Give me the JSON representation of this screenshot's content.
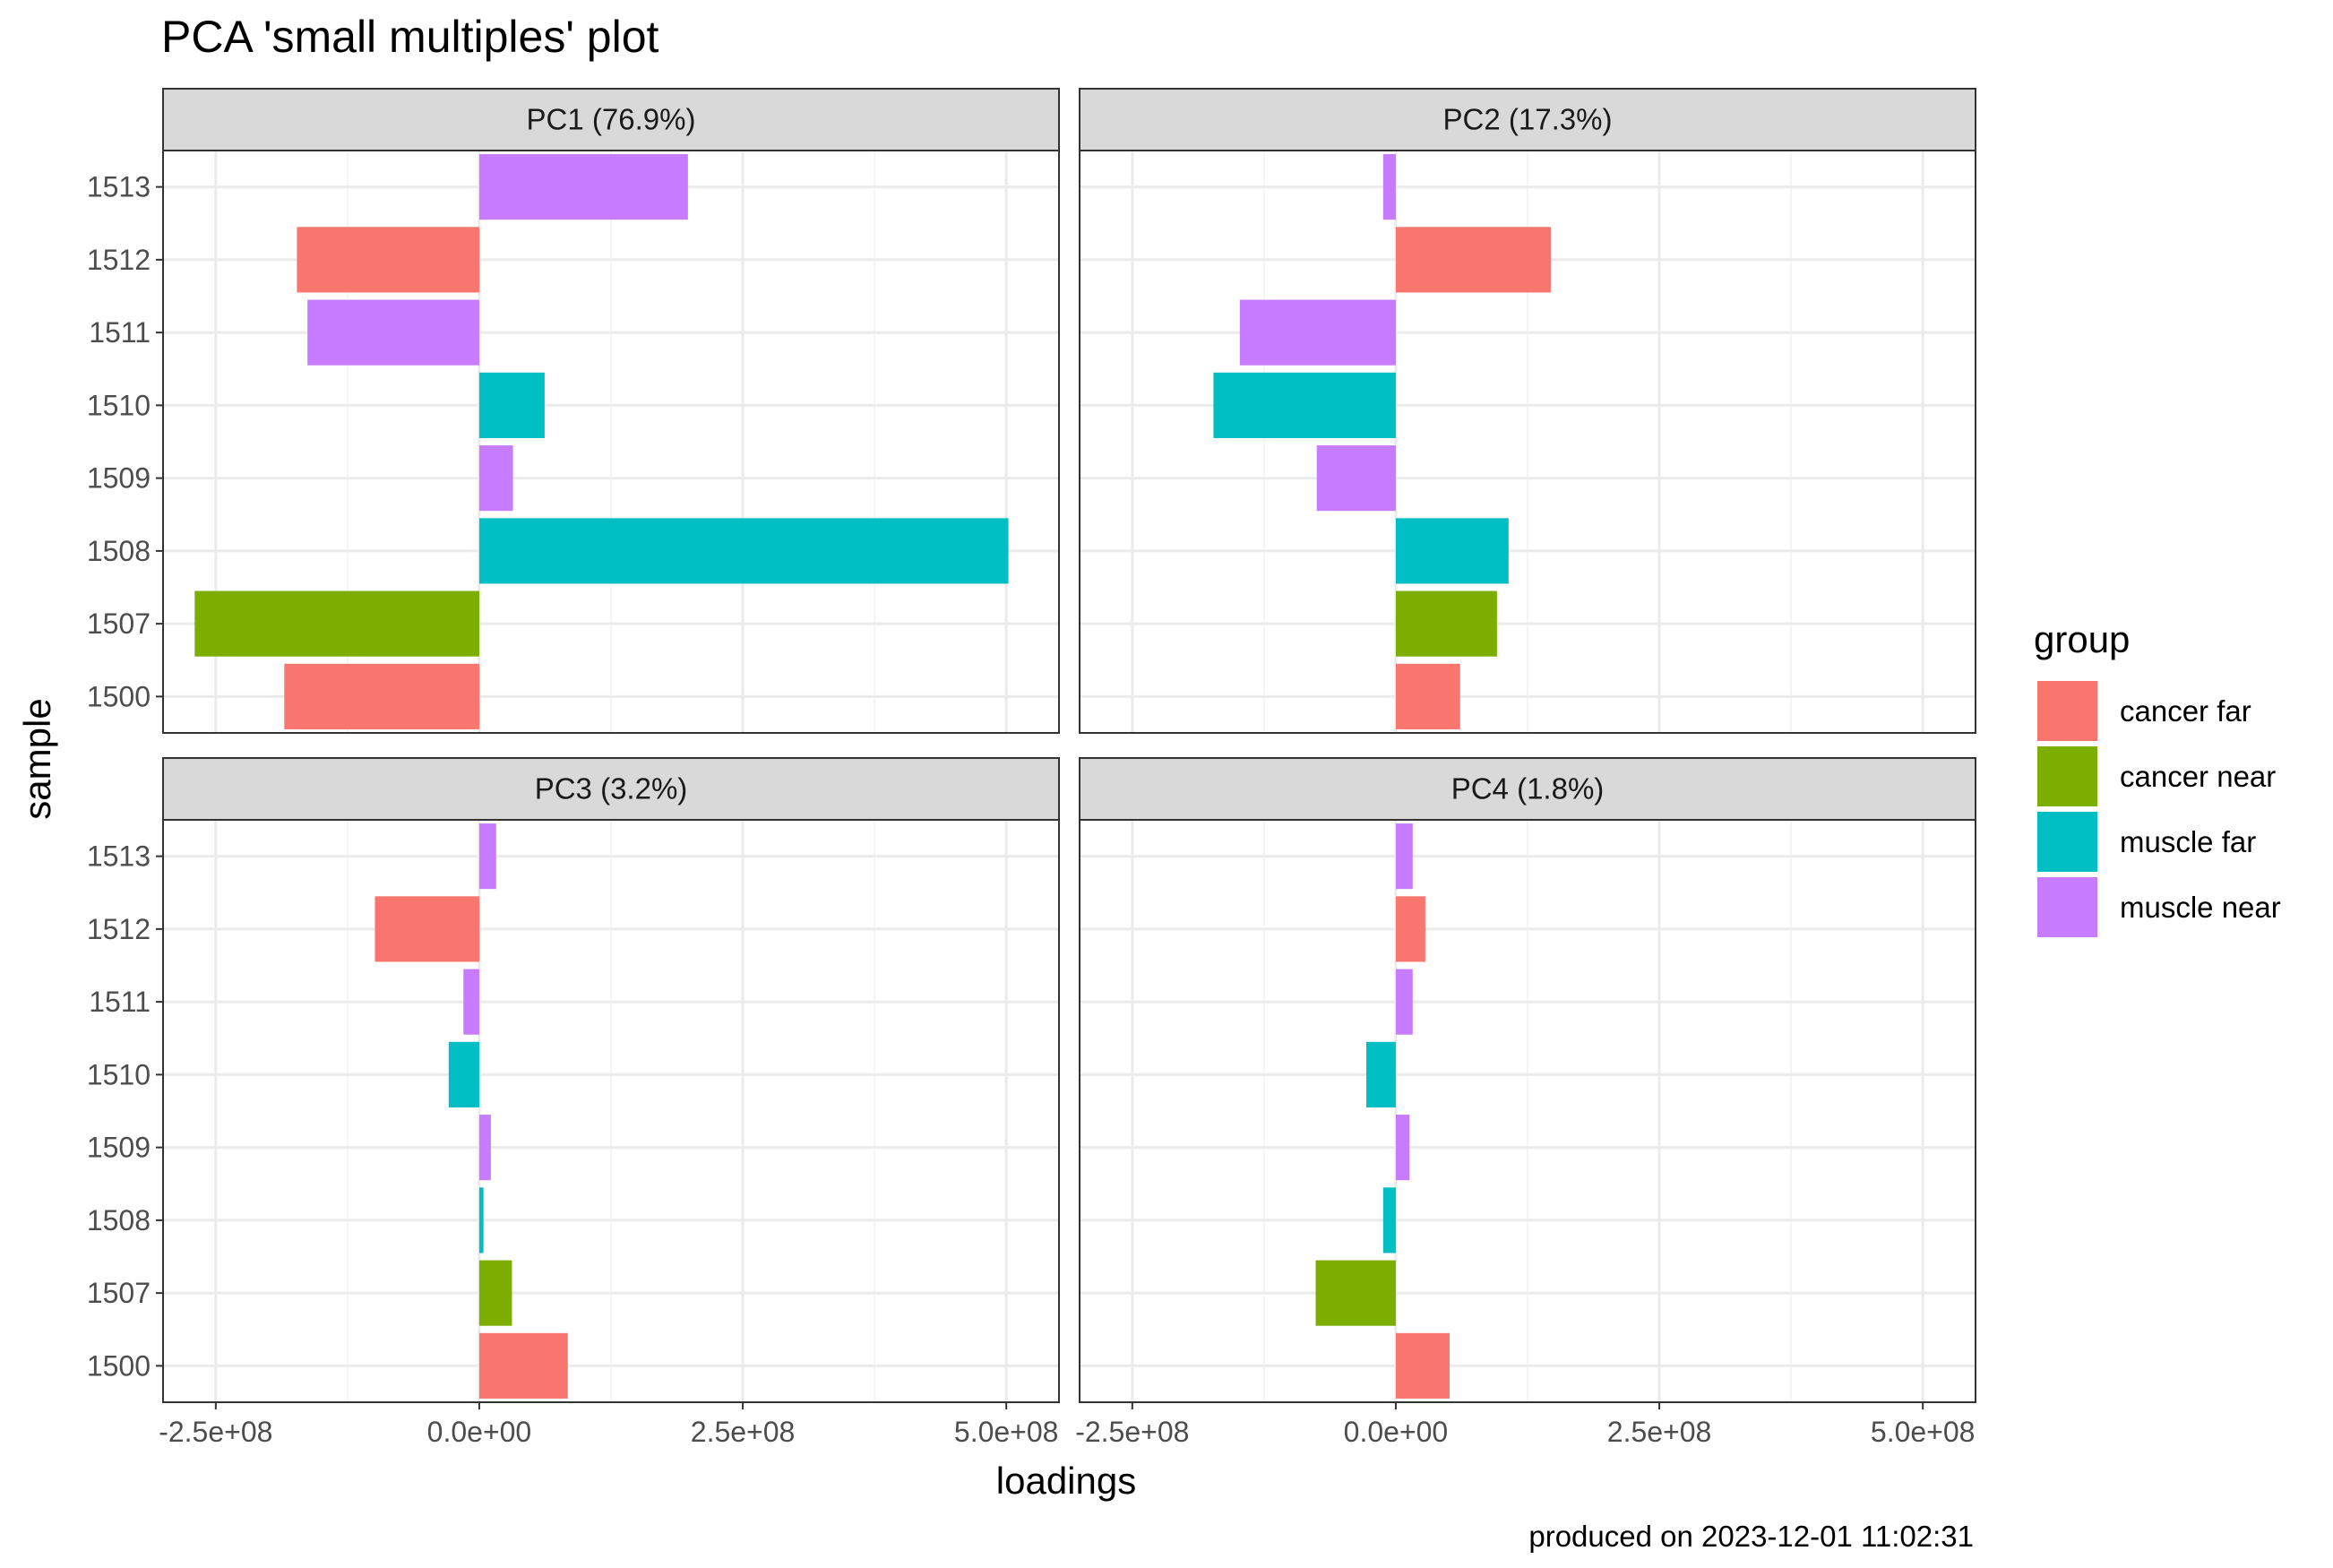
{
  "chart_data": {
    "type": "bar",
    "orientation": "horizontal",
    "title": "PCA 'small multiples' plot",
    "xlabel": "loadings",
    "ylabel": "sample",
    "caption": "produced on 2023-12-01 11:02:31",
    "xlim": [
      -300000000,
      550000000
    ],
    "x_ticks": [
      -250000000,
      0,
      250000000,
      500000000
    ],
    "x_tick_labels": [
      "-2.5e+08",
      "0.0e+00",
      "2.5e+08",
      "5.0e+08"
    ],
    "categories": [
      "1500",
      "1507",
      "1508",
      "1509",
      "1510",
      "1511",
      "1512",
      "1513"
    ],
    "sample_groups": [
      "cancer far",
      "cancer near",
      "muscle far",
      "muscle near",
      "muscle far",
      "muscle near",
      "cancer far",
      "muscle near"
    ],
    "legend": {
      "title": "group",
      "position": "right",
      "entries": [
        {
          "label": "cancer far",
          "color": "#F8766D"
        },
        {
          "label": "cancer near",
          "color": "#7CAE00"
        },
        {
          "label": "muscle far",
          "color": "#00BFC4"
        },
        {
          "label": "muscle near",
          "color": "#C77CFF"
        }
      ]
    },
    "grid": true,
    "panels": [
      {
        "label": "PC1 (76.9%)",
        "values": [
          -185000000,
          -270000000,
          502000000,
          32000000,
          62000000,
          -163000000,
          -173000000,
          198000000
        ]
      },
      {
        "label": "PC2 (17.3%)",
        "values": [
          61000000,
          96000000,
          107000000,
          -75000000,
          -173000000,
          -148000000,
          147000000,
          -12000000
        ]
      },
      {
        "label": "PC3 (3.2%)",
        "values": [
          84000000,
          31000000,
          4000000,
          11000000,
          -29000000,
          -15000000,
          -99000000,
          16000000
        ]
      },
      {
        "label": "PC4 (1.8%)",
        "values": [
          51000000,
          -76000000,
          -12000000,
          13000000,
          -28000000,
          16000000,
          28000000,
          16000000
        ]
      }
    ]
  }
}
